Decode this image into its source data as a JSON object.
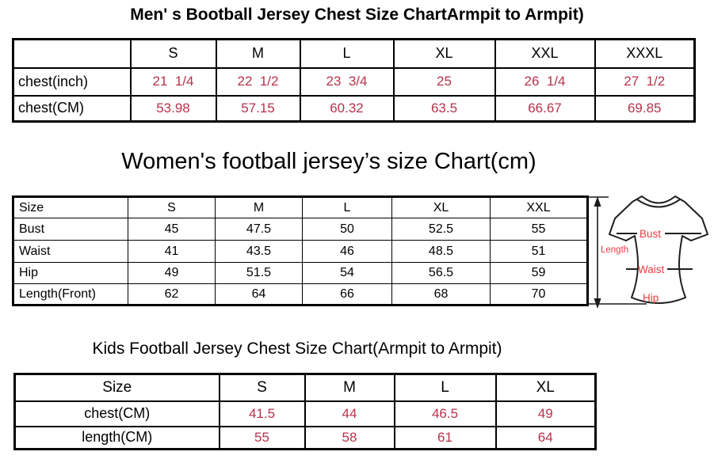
{
  "colors": {
    "value_text": "#b8324a",
    "diagram_label": "#ee3a42",
    "table_border": "#000000",
    "background": "#ffffff"
  },
  "mens_chart": {
    "title": "Men' s Bootball Jersey Chest Size ChartArmpit to Armpit)",
    "columns": [
      "",
      "S",
      "M",
      "L",
      "XL",
      "XXL",
      "XXXL"
    ],
    "rows": [
      {
        "label": "chest(inch)",
        "values": [
          "21  1/4",
          "22  1/2",
          "23  3/4",
          "25",
          "26  1/4",
          "27  1/2"
        ]
      },
      {
        "label": "chest(CM)",
        "values": [
          "53.98",
          "57.15",
          "60.32",
          "63.5",
          "66.67",
          "69.85"
        ]
      }
    ]
  },
  "womens_chart": {
    "title": "Women's football jersey’s size Chart(cm)",
    "columns": [
      "Size",
      "S",
      "M",
      "L",
      "XL",
      "XXL"
    ],
    "rows": [
      {
        "label": "Bust",
        "values": [
          "45",
          "47.5",
          "50",
          "52.5",
          "55"
        ]
      },
      {
        "label": "Waist",
        "values": [
          "41",
          "43.5",
          "46",
          "48.5",
          "51"
        ]
      },
      {
        "label": "Hip",
        "values": [
          "49",
          "51.5",
          "54",
          "56.5",
          "59"
        ]
      },
      {
        "label": "Length(Front)",
        "values": [
          "62",
          "64",
          "66",
          "68",
          "70"
        ]
      }
    ]
  },
  "kids_chart": {
    "title": "Kids Football Jersey Chest Size Chart(Armpit to Armpit)",
    "columns": [
      "Size",
      "S",
      "M",
      "L",
      "XL"
    ],
    "rows": [
      {
        "label": "chest(CM)",
        "values": [
          "41.5",
          "44",
          "46.5",
          "49"
        ]
      },
      {
        "label": "length(CM)",
        "values": [
          "55",
          "58",
          "61",
          "64"
        ]
      }
    ]
  },
  "diagram": {
    "labels": {
      "length": "Length",
      "bust": "Bust",
      "waist": "Waist",
      "hip": "Hip"
    }
  }
}
